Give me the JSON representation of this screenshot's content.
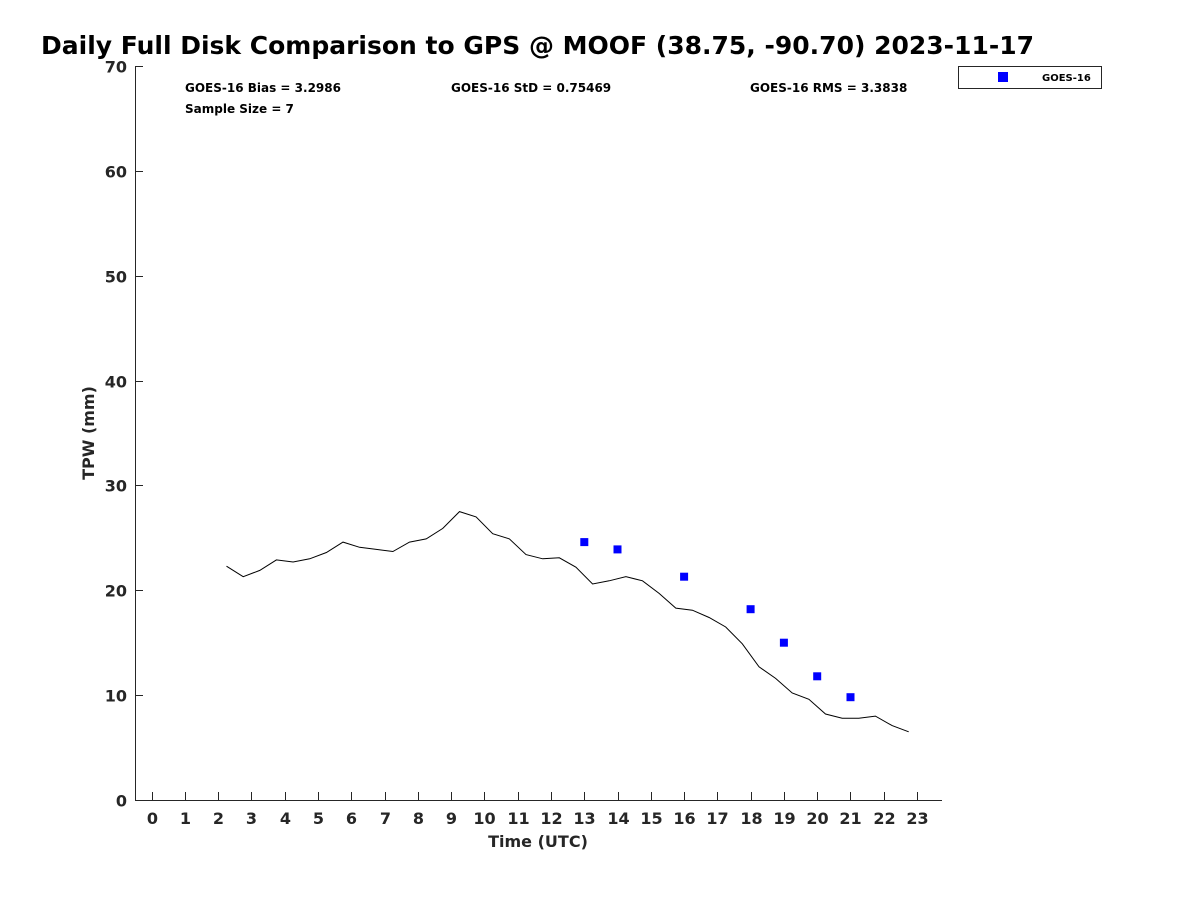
{
  "chart_data": {
    "type": "scatter",
    "title": "Daily Full Disk Comparison to GPS @ MOOF (38.75, -90.70) 2023-11-17",
    "xlabel": "Time (UTC)",
    "ylabel": "TPW (mm)",
    "xlim": [
      -0.5,
      23.75
    ],
    "ylim": [
      0,
      70
    ],
    "x_tick_values": [
      0,
      1,
      2,
      3,
      4,
      5,
      6,
      7,
      8,
      9,
      10,
      11,
      12,
      13,
      14,
      15,
      16,
      17,
      18,
      19,
      20,
      21,
      22,
      23
    ],
    "x_tick_labels": [
      "0",
      "1",
      "2",
      "3",
      "4",
      "5",
      "6",
      "7",
      "8",
      "9",
      "10",
      "11",
      "12",
      "13",
      "14",
      "15",
      "16",
      "17",
      "18",
      "19",
      "20",
      "21",
      "22",
      "23"
    ],
    "y_ticks": [
      0,
      10,
      20,
      30,
      40,
      50,
      60,
      70
    ],
    "grid": false,
    "legend_position": "top-right",
    "stats": [
      "GOES-16 Bias = 3.2986",
      "GOES-16 StD = 0.75469",
      "GOES-16 RMS = 3.3838",
      "Sample Size = 7"
    ],
    "series": [
      {
        "type": "scatter",
        "name": "GOES-16",
        "color": "#0000ff",
        "marker": "square",
        "x": [
          13,
          14,
          16,
          18,
          19,
          20,
          21
        ],
        "y": [
          24.6,
          23.9,
          21.3,
          18.2,
          15.0,
          11.8,
          9.8
        ]
      },
      {
        "type": "line",
        "color": "#000000",
        "x": [
          2.25,
          2.75,
          3.25,
          3.75,
          4.25,
          4.75,
          5.25,
          5.75,
          6.25,
          6.75,
          7.25,
          7.75,
          8.25,
          8.75,
          9.25,
          9.75,
          10.25,
          10.75,
          11.25,
          11.75,
          12.25,
          12.75,
          13.25,
          13.75,
          14.25,
          14.75,
          15.25,
          15.75,
          16.25,
          16.75,
          17.25,
          17.75,
          18.25,
          18.75,
          19.25,
          19.75,
          20.25,
          20.75,
          21.25,
          21.75,
          22.25,
          22.75
        ],
        "y": [
          22.3,
          21.3,
          21.9,
          22.9,
          22.7,
          23.0,
          23.6,
          24.6,
          24.1,
          23.9,
          23.7,
          24.6,
          24.9,
          25.9,
          27.5,
          27.0,
          25.4,
          24.9,
          23.4,
          23.0,
          23.1,
          22.2,
          20.6,
          20.9,
          21.3,
          20.9,
          19.7,
          18.3,
          18.1,
          17.4,
          16.5,
          14.9,
          12.7,
          11.6,
          10.2,
          9.6,
          8.2,
          7.8,
          7.8,
          8.0,
          7.1,
          6.5
        ]
      }
    ]
  }
}
